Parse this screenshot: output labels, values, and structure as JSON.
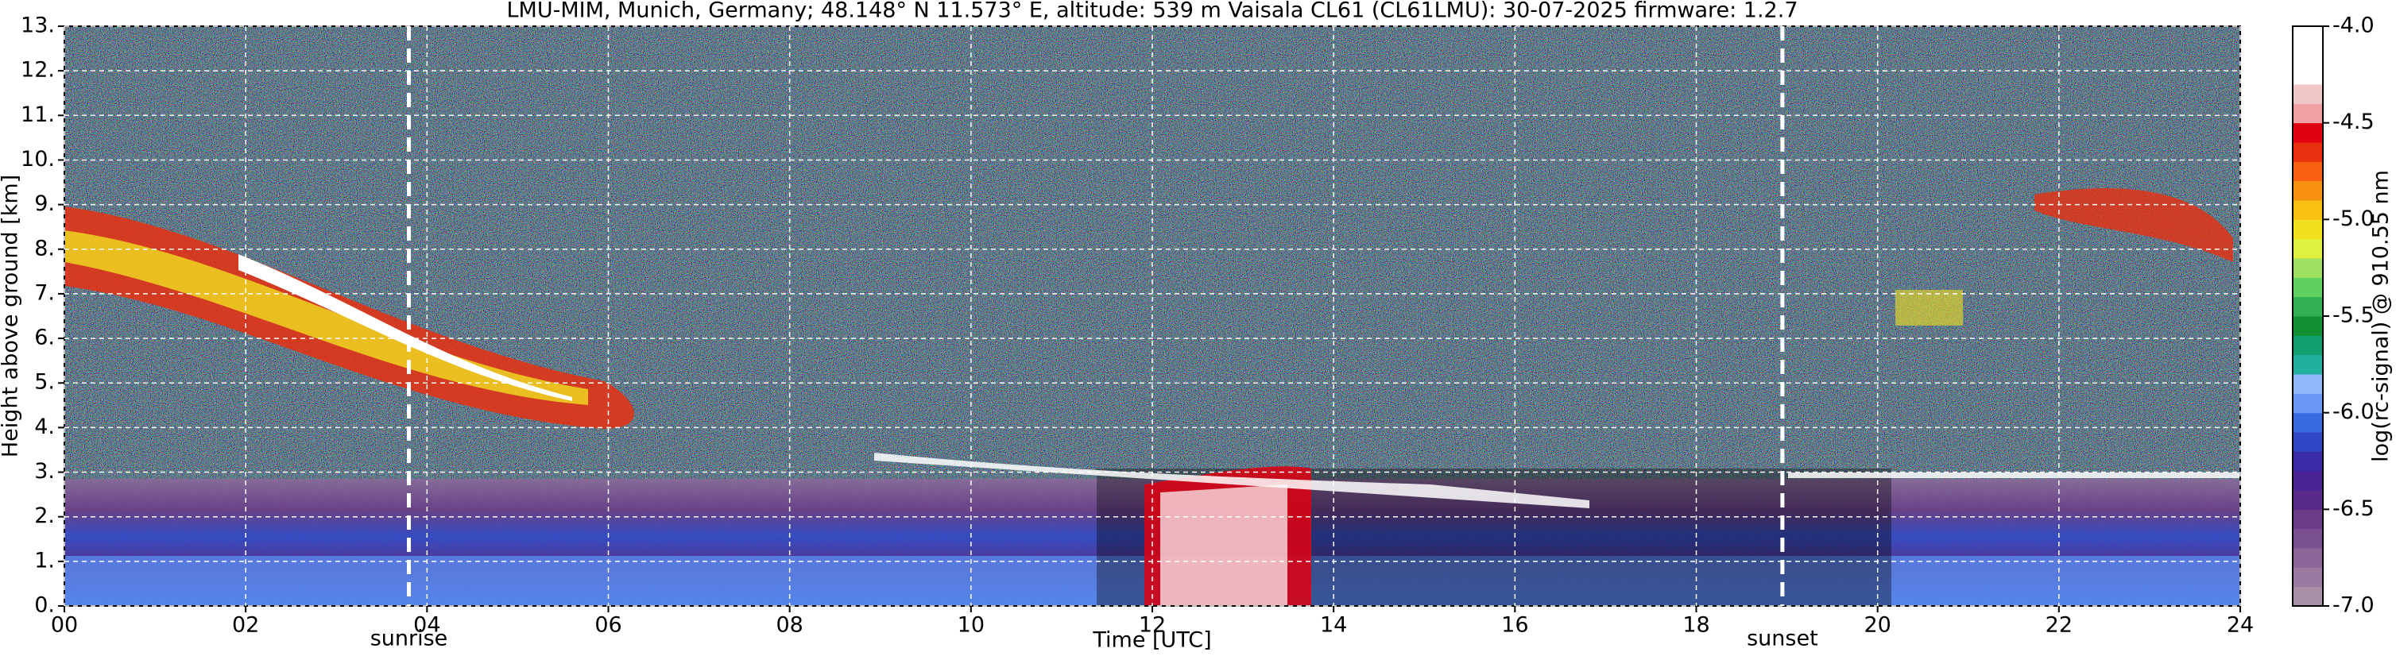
{
  "chart_data": {
    "type": "heatmap",
    "title": "LMU-MIM, Munich, Germany; 48.148° N 11.573° E, altitude: 539 m    Vaisala CL61 (CL61LMU): 30-07-2025    firmware: 1.2.7",
    "x_label": "Time [UTC]",
    "y_label": "Height above ground [km]",
    "xlim": [
      0,
      24
    ],
    "xticks": [
      {
        "value": 0,
        "label": "00"
      },
      {
        "value": 2,
        "label": "02"
      },
      {
        "value": 4,
        "label": "04"
      },
      {
        "value": 6,
        "label": "06"
      },
      {
        "value": 8,
        "label": "08"
      },
      10,
      12,
      14,
      16,
      18,
      20,
      22,
      24
    ],
    "ylim": [
      0,
      13
    ],
    "yticks": [
      {
        "value": 0,
        "label": "0."
      },
      {
        "value": 1,
        "label": "1."
      },
      {
        "value": 2,
        "label": "2."
      },
      {
        "value": 3,
        "label": "3."
      },
      {
        "value": 4,
        "label": "4."
      },
      {
        "value": 5,
        "label": "5."
      },
      {
        "value": 6,
        "label": "6."
      },
      {
        "value": 7,
        "label": "7."
      },
      {
        "value": 8,
        "label": "8."
      },
      {
        "value": 9,
        "label": "9."
      },
      {
        "value": 10,
        "label": "10."
      },
      {
        "value": 11,
        "label": "11."
      },
      {
        "value": 12,
        "label": "12."
      },
      {
        "value": 13,
        "label": "13."
      }
    ],
    "grid": true,
    "markers": [
      {
        "label": "sunrise",
        "x": 3.8
      },
      {
        "label": "sunset",
        "x": 18.95
      }
    ],
    "colorbar": {
      "label": "log(rc-signal) @ 910.55 nm",
      "clim": [
        -7,
        -4
      ],
      "ticks": [
        {
          "value": -7,
          "label": "-7.0"
        },
        -6.5,
        {
          "value": -6,
          "label": "-6.0"
        },
        -5.5,
        {
          "value": -5,
          "label": "-5.0"
        },
        -4.5,
        {
          "value": -4,
          "label": "-4.0"
        }
      ],
      "colors": [
        "#a890a8",
        "#9a7aa0",
        "#8c6698",
        "#7a4f8f",
        "#6a3b88",
        "#5a2a8a",
        "#4a2396",
        "#3a2aa8",
        "#3048c8",
        "#3a6ae0",
        "#6a9af5",
        "#90b8fa",
        "#20b0a0",
        "#10a070",
        "#109030",
        "#30b050",
        "#60d060",
        "#a0e060",
        "#e0f040",
        "#f0e020",
        "#f8c010",
        "#f89010",
        "#f86010",
        "#e83010",
        "#e00010",
        "#f0a0a0",
        "#f0c8c8",
        "#ffffff",
        "#ffffff",
        "#ffffff"
      ]
    }
  }
}
